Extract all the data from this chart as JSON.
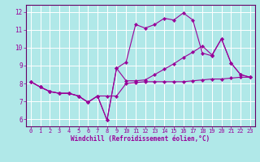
{
  "xlabel": "Windchill (Refroidissement éolien,°C)",
  "bg_color": "#b0e8e8",
  "line_color": "#990099",
  "grid_color": "#ffffff",
  "spine_color": "#660066",
  "xlim": [
    -0.5,
    23.5
  ],
  "ylim": [
    5.6,
    12.4
  ],
  "yticks": [
    6,
    7,
    8,
    9,
    10,
    11,
    12
  ],
  "xticks": [
    0,
    1,
    2,
    3,
    4,
    5,
    6,
    7,
    8,
    9,
    10,
    11,
    12,
    13,
    14,
    15,
    16,
    17,
    18,
    19,
    20,
    21,
    22,
    23
  ],
  "s1_x": [
    0,
    1,
    2,
    3,
    4,
    5,
    6,
    7,
    8,
    9,
    10,
    11,
    12,
    13,
    14,
    15,
    16,
    17,
    18,
    19,
    20,
    21,
    22,
    23
  ],
  "s1_y": [
    8.1,
    7.8,
    7.55,
    7.45,
    7.45,
    7.3,
    6.95,
    7.3,
    7.3,
    7.3,
    8.0,
    8.05,
    8.1,
    8.1,
    8.1,
    8.1,
    8.1,
    8.15,
    8.2,
    8.25,
    8.25,
    8.3,
    8.35,
    8.35
  ],
  "s2_x": [
    0,
    1,
    2,
    3,
    4,
    5,
    6,
    7,
    8,
    9,
    10,
    11,
    12,
    13,
    14,
    15,
    16,
    17,
    18,
    19,
    20,
    21,
    22,
    23
  ],
  "s2_y": [
    8.1,
    7.8,
    7.55,
    7.45,
    7.45,
    7.3,
    6.95,
    7.3,
    5.95,
    8.85,
    8.15,
    8.15,
    8.2,
    8.5,
    8.8,
    9.1,
    9.45,
    9.75,
    10.1,
    9.6,
    10.5,
    9.15,
    8.5,
    8.35
  ],
  "s3_x": [
    0,
    1,
    2,
    3,
    4,
    5,
    6,
    7,
    8,
    9,
    10,
    11,
    12,
    13,
    14,
    15,
    16,
    17,
    18,
    19,
    20,
    21,
    22,
    23
  ],
  "s3_y": [
    8.1,
    7.8,
    7.55,
    7.45,
    7.45,
    7.3,
    6.95,
    7.3,
    5.95,
    8.85,
    9.2,
    11.3,
    11.1,
    11.3,
    11.65,
    11.55,
    11.95,
    11.55,
    9.7,
    9.55,
    10.5,
    9.15,
    8.5,
    8.35
  ],
  "xlabel_fontsize": 5.5,
  "tick_fontsize": 5.0,
  "lw": 0.8,
  "ms": 2.2
}
